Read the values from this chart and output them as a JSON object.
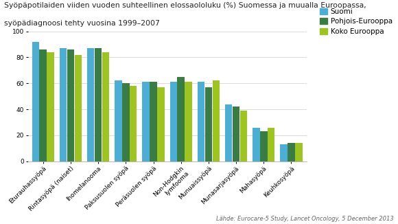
{
  "title_line1": "Syöpäpotilaiden viiden vuoden suhteellinen elossaololuku (%) Suomessa ja muualla Euroopassa,",
  "title_line2": "syöpädiagnoosi tehty vuosina 1999–2007",
  "source": "Lähde: Eurocare-5 Study, Lancet Oncology, 5 December 2013",
  "categories": [
    "Eturauhassyöpä",
    "Rintasyöpä (naiset)",
    "Ihomelanooma",
    "Paksusuolen syöpä",
    "Peräsuolen syöpä",
    "Non-Hodgkin\nlymfooma",
    "Munuaissyöpä",
    "Munasarjasyöpä",
    "Mahasyöpä",
    "Keuhkosyöpä"
  ],
  "suomi": [
    92,
    87,
    87,
    62,
    61,
    61,
    61,
    44,
    26,
    13
  ],
  "pohjois": [
    86,
    86,
    87,
    60,
    61,
    65,
    57,
    42,
    23,
    14
  ],
  "koko": [
    84,
    82,
    84,
    58,
    57,
    61,
    62,
    39,
    26,
    14
  ],
  "color_suomi": "#4BAED4",
  "color_pohjois": "#3A7D44",
  "color_koko": "#9DC41F",
  "legend_labels": [
    "Suomi",
    "Pohjois-Eurooppa",
    "Koko Eurooppa"
  ],
  "ylim": [
    0,
    100
  ],
  "yticks": [
    0,
    20,
    40,
    60,
    80,
    100
  ],
  "title_fontsize": 7.8,
  "tick_fontsize": 6.5,
  "source_fontsize": 6.0,
  "legend_fontsize": 7.5,
  "background": "#FFFFFF"
}
